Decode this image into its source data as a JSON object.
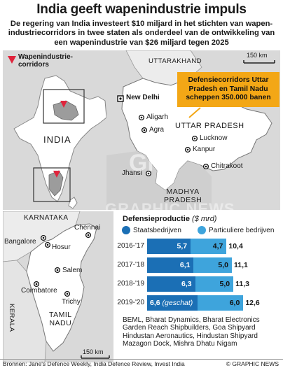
{
  "title": "India geeft wapenindustrie impuls",
  "subtitle": "De regering van India investeert $10 miljard in het stichten van wapen-industriecorridors in twee staten als onderdeel van de ontwikkeling van een wapenindustrie van $26 miljard tegen 2025",
  "legend": {
    "label_line1": "Wapenindustrie-",
    "label_line2": "corridors",
    "marker_color": "#e0243c"
  },
  "india_map": {
    "country_label": "INDIA"
  },
  "up_map": {
    "scale": "150 km",
    "region_north": "UTTARAKHAND",
    "region_main": "UTTAR PRADESH",
    "region_south_line1": "MADHYA",
    "region_south_line2": "PRADESH",
    "cities": {
      "delhi": "New Delhi",
      "aligarh": "Aligarh",
      "agra": "Agra",
      "lucknow": "Lucknow",
      "kanpur": "Kanpur",
      "jhansi": "Jhansi",
      "chitrakoot": "Chitrakoot"
    }
  },
  "callout": {
    "line1": "Defensiecorridors Uttar",
    "line2": "Pradesh en Tamil Nadu",
    "line3": "scheppen 350.000 banen"
  },
  "tn_map": {
    "scale": "150 km",
    "region_north": "KARNATAKA",
    "region_west": "KERALA",
    "region_main_line1": "TAMIL",
    "region_main_line2": "NADU",
    "cities": {
      "chennai": "Chennai",
      "bangalore": "Bangalore",
      "hosur": "Hosur",
      "salem": "Salem",
      "coimbatore": "Coimbatore",
      "trichy": "Trichy"
    }
  },
  "watermark": {
    "short": "GN",
    "long": "GRAPHIC NEWS"
  },
  "chart_data": {
    "type": "bar",
    "title": "Defensieproductie",
    "unit": "($ mrd)",
    "stacked": true,
    "orientation": "horizontal",
    "categories": [
      "2016-'17",
      "2017-'18",
      "2018-'19",
      "2019-'20"
    ],
    "series": [
      {
        "name": "Staatsbedrijven",
        "color": "#1b6fb5",
        "values": [
          5.7,
          6.1,
          6.3,
          6.6
        ],
        "value_labels": [
          "5,7",
          "6,1",
          "6,3",
          "6,6"
        ]
      },
      {
        "name": "Particuliere bedrijven",
        "color": "#3ea4dc",
        "values": [
          4.7,
          5.0,
          5.0,
          6.0
        ],
        "value_labels": [
          "4,7",
          "5,0",
          "5,0",
          "6,0"
        ]
      }
    ],
    "totals": [
      10.4,
      11.1,
      11.3,
      12.6
    ],
    "total_labels": [
      "10,4",
      "11,1",
      "11,3",
      "12,6"
    ],
    "annotation": "(geschat)"
  },
  "companies": "BEML, Bharat Dynamics, Bharat Electronics Garden Reach Shipbuilders, Goa Shipyard Hindustan Aeronautics, Hindustan Shipyard Mazagon Dock, Mishra Dhatu Nigam",
  "sources": "Bronnen: Jane's Defence Weekly, India Defence Review, Invest India",
  "credit": "© GRAPHIC NEWS"
}
